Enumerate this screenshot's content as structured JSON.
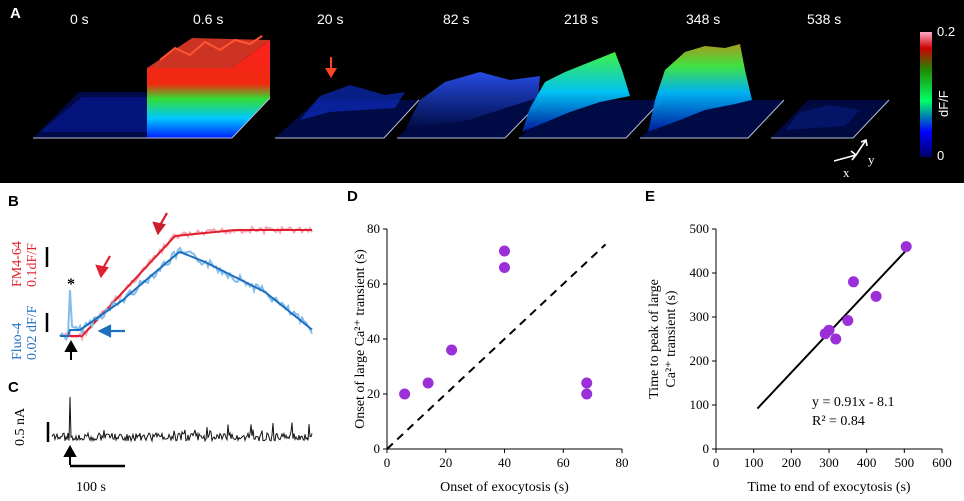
{
  "panel_letters": {
    "a": "A",
    "b": "B",
    "c": "C",
    "d": "D",
    "e": "E"
  },
  "panel_a": {
    "time_labels": [
      "0 s",
      "0.6 s",
      "20 s",
      "82 s",
      "218 s",
      "348 s",
      "538 s"
    ],
    "colorbar": {
      "max": "0.2",
      "min": "0",
      "label": "dF/F"
    },
    "axis_x": "x",
    "axis_y": "y",
    "colors": {
      "background": "#000000",
      "arrow": "#ff4422"
    }
  },
  "panel_b": {
    "fm_label": "FM4-64",
    "fm_scale": "0.1dF/F",
    "fluo_label": "Fluo-4",
    "fluo_scale": "0.02 dF/F",
    "asterisk": "*",
    "colors": {
      "fm": "#e0202f",
      "fm_light": "#f3a9b6",
      "fluo": "#1f6fc1",
      "fluo_light": "#86bde8"
    }
  },
  "panel_c": {
    "scale_label": "0.5 nA",
    "time_scale": "100 s"
  },
  "chart_data": [
    {
      "id": "D",
      "type": "scatter",
      "xlabel": "Onset of exocytosis (s)",
      "ylabel": "Onset of large Ca²⁺ transient (s)",
      "xlim": [
        0,
        80
      ],
      "ylim": [
        0,
        80
      ],
      "xticks": [
        "0",
        "20",
        "40",
        "60",
        "80"
      ],
      "yticks": [
        "0",
        "20",
        "40",
        "60",
        "80"
      ],
      "x": [
        6,
        14,
        22,
        40,
        40,
        68,
        68
      ],
      "y": [
        20,
        24,
        36,
        66,
        72,
        20,
        24
      ],
      "reference_line": "identity (dashed)",
      "color": "#9b30d9"
    },
    {
      "id": "E",
      "type": "scatter",
      "xlabel": "Time to end of exocytosis (s)",
      "ylabel": "Time to peak of large Ca²⁺ transient (s)",
      "xlim": [
        0,
        600
      ],
      "ylim": [
        0,
        500
      ],
      "xticks": [
        "0",
        "100",
        "200",
        "300",
        "400",
        "500",
        "600"
      ],
      "yticks": [
        "0",
        "100",
        "200",
        "300",
        "400",
        "500"
      ],
      "x": [
        290,
        300,
        318,
        350,
        365,
        425,
        505
      ],
      "y": [
        262,
        270,
        250,
        292,
        380,
        347,
        460
      ],
      "fit": {
        "slope": 0.91,
        "intercept": -8.1,
        "x_range": [
          110,
          505
        ]
      },
      "equation": "y = 0.91x - 8.1",
      "r2": "R² = 0.84",
      "color": "#9b30d9"
    }
  ]
}
